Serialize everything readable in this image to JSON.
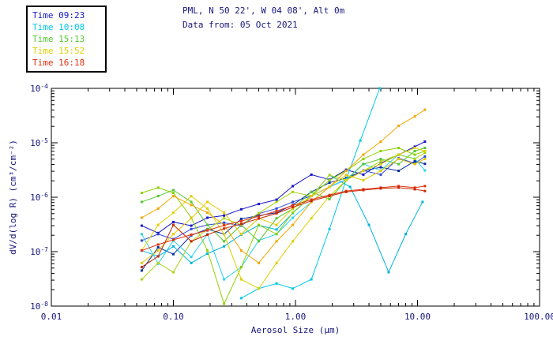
{
  "header": {
    "title": "PML, N 50 22', W 04 08', Alt 0m",
    "subtitle": "Data from: 05 Oct 2021"
  },
  "colors": {
    "background": "#ffffff",
    "frame": "#000000",
    "text": "#15157d"
  },
  "chart_data": {
    "type": "line",
    "title": "PML, N 50 22', W 04 08', Alt 0m",
    "subtitle": "Data from: 05 Oct 2021",
    "xlabel": "Aerosol Size (μm)",
    "ylabel": "dV/d(log R) (cm³/cm⁻²)",
    "xscale": "log",
    "yscale": "log",
    "grid": false,
    "xlim": [
      0.01,
      100
    ],
    "ylim": [
      1e-08,
      0.0001
    ],
    "xticks": [
      0.01,
      0.1,
      1.0,
      10.0,
      100.0
    ],
    "xtick_labels": [
      "0.01",
      "0.10",
      "1.00",
      "10.00",
      "100.00"
    ],
    "ytick_exponents": [
      -8,
      -7,
      -6,
      -5,
      -4
    ],
    "legend_position": "top-left",
    "legend": [
      {
        "label": "Time 09:23",
        "color": "#1616c8"
      },
      {
        "label": "Time 10:08",
        "color": "#00c8e6"
      },
      {
        "label": "Time 15:13",
        "color": "#55c832"
      },
      {
        "label": "Time 15:52",
        "color": "#e0d000"
      },
      {
        "label": "Time 16:18",
        "color": "#e03010"
      }
    ],
    "x_default": [
      0.055,
      0.075,
      0.1,
      0.14,
      0.19,
      0.26,
      0.36,
      0.5,
      0.7,
      0.95,
      1.35,
      1.9,
      2.6,
      3.6,
      5.0,
      7.0,
      9.5,
      11.5
    ],
    "series": [
      {
        "name": "09:23 run1",
        "color": "#1616c8",
        "y": [
          3e-07,
          2.2e-07,
          3.5e-07,
          3e-07,
          4.2e-07,
          4.6e-07,
          6e-07,
          7.5e-07,
          9e-07,
          1.6e-06,
          2.6e-06,
          2.1e-06,
          3.2e-06,
          2.6e-06,
          4.2e-06,
          6e-06,
          8.5e-06,
          1.05e-05
        ]
      },
      {
        "name": "09:23 run2",
        "color": "#2e49d8",
        "y": [
          1.6e-07,
          2.1e-07,
          1.7e-07,
          2.6e-07,
          3.1e-07,
          3.4e-07,
          3e-07,
          5e-07,
          6.2e-07,
          8.2e-07,
          1.05e-06,
          1.55e-06,
          2.1e-06,
          3.1e-06,
          2.6e-06,
          5.2e-06,
          4.2e-06,
          5.6e-06
        ]
      },
      {
        "name": "09:23 run3",
        "color": "#0b2fa0",
        "y": [
          4.5e-08,
          1.2e-07,
          9e-08,
          2e-07,
          2.6e-07,
          2.1e-07,
          4e-07,
          4.6e-07,
          5.2e-07,
          7.2e-07,
          1.25e-06,
          1.85e-06,
          2.25e-06,
          3.05e-06,
          3.55e-06,
          3.05e-06,
          4.6e-06,
          4.1e-06
        ]
      },
      {
        "name": "10:08 run1",
        "color": "#00c8e6",
        "x": [
          0.36,
          0.5,
          0.7,
          0.95,
          1.35,
          1.9,
          2.6,
          3.4,
          4.9
        ],
        "y": [
          1.4e-08,
          2.1e-08,
          2.6e-08,
          2.1e-08,
          3.1e-08,
          2.6e-07,
          2.1e-06,
          1.1e-05,
          0.0001
        ]
      },
      {
        "name": "10:08 run2",
        "color": "#2ad2f0",
        "y": [
          2.1e-07,
          6e-08,
          1.6e-07,
          8e-08,
          2.1e-07,
          3.1e-08,
          5.2e-08,
          1.6e-07,
          2.1e-07,
          4.2e-07,
          8.2e-07,
          1.55e-06,
          2.1e-06,
          4.1e-06,
          3.1e-06,
          6.1e-06,
          5.1e-06,
          3.1e-06
        ]
      },
      {
        "name": "10:08 run3",
        "color": "#00b4dc",
        "x": [
          0.055,
          0.075,
          0.1,
          0.14,
          0.19,
          0.26,
          0.36,
          0.5,
          0.7,
          0.95,
          1.35,
          1.9,
          2.8,
          4.0,
          5.8,
          8.0,
          11.0
        ],
        "y": [
          1.05e-07,
          8.2e-08,
          1.25e-07,
          6.2e-08,
          9.2e-08,
          1.25e-07,
          2.05e-07,
          3.05e-07,
          2.55e-07,
          5.1e-07,
          1.05e-06,
          2.55e-06,
          1.55e-06,
          3.1e-07,
          4.2e-08,
          2.1e-07,
          8.2e-07
        ]
      },
      {
        "name": "15:13 run1",
        "color": "#8cd200",
        "y": [
          1.2e-06,
          1.5e-06,
          1.2e-06,
          4.2e-07,
          1.05e-07,
          1.1e-08,
          5.2e-08,
          3.1e-07,
          2.1e-07,
          5.2e-07,
          1.05e-06,
          2.05e-06,
          3.05e-06,
          5.05e-06,
          7.05e-06,
          8.05e-06,
          6.05e-06,
          7.05e-06
        ]
      },
      {
        "name": "15:13 run2",
        "color": "#55c832",
        "y": [
          8.2e-07,
          1.05e-06,
          1.35e-06,
          8.2e-07,
          3.1e-07,
          1.55e-07,
          3.1e-07,
          1.55e-07,
          4.1e-07,
          6.1e-07,
          1.25e-06,
          9.2e-07,
          2.05e-06,
          4.05e-06,
          5.05e-06,
          4.05e-06,
          7.05e-06,
          8.05e-06
        ]
      },
      {
        "name": "15:13 run3",
        "color": "#a8d414",
        "y": [
          3.1e-08,
          6.2e-08,
          4.2e-08,
          1.55e-07,
          2.55e-07,
          4.1e-07,
          3.1e-07,
          5.1e-07,
          8.2e-07,
          1.25e-06,
          1.05e-06,
          2.55e-06,
          2.05e-06,
          3.05e-06,
          4.55e-06,
          6.05e-06,
          5.05e-06,
          6.55e-06
        ]
      },
      {
        "name": "15:52 run1",
        "color": "#f0a800",
        "y": [
          4.2e-07,
          6.2e-07,
          1.05e-06,
          7.2e-07,
          5.2e-07,
          3.1e-07,
          1.05e-07,
          6.2e-08,
          1.55e-07,
          3.1e-07,
          8.2e-07,
          1.55e-06,
          3.05e-06,
          6.05e-06,
          1.05e-05,
          2.05e-05,
          3.05e-05,
          4.05e-05
        ]
      },
      {
        "name": "15:52 run2",
        "color": "#e0d000",
        "y": [
          1.05e-07,
          3.1e-07,
          5.2e-07,
          1.05e-06,
          6.2e-07,
          2.1e-07,
          3.1e-08,
          2.1e-08,
          6.2e-08,
          1.55e-07,
          4.1e-07,
          1.05e-06,
          2.05e-06,
          3.05e-06,
          4.05e-06,
          6.05e-06,
          8.05e-06,
          7.05e-06
        ]
      },
      {
        "name": "15:52 run3",
        "color": "#e6c800",
        "y": [
          6.2e-08,
          1.05e-07,
          2.1e-07,
          4.1e-07,
          8.2e-07,
          5.2e-07,
          2.1e-07,
          4.1e-07,
          3.1e-07,
          6.2e-07,
          1.05e-06,
          1.55e-06,
          2.55e-06,
          2.05e-06,
          3.05e-06,
          5.05e-06,
          4.05e-06,
          5.05e-06
        ]
      },
      {
        "name": "16:18 run1",
        "color": "#e03010",
        "y": [
          1.05e-07,
          1.35e-07,
          1.65e-07,
          2.05e-07,
          2.45e-07,
          3.05e-07,
          3.65e-07,
          4.45e-07,
          5.55e-07,
          7.05e-07,
          9.05e-07,
          1.1e-06,
          1.3e-06,
          1.4e-06,
          1.5e-06,
          1.6e-06,
          1.5e-06,
          1.6e-06
        ]
      },
      {
        "name": "16:18 run2",
        "color": "#c82800",
        "y": [
          5.2e-08,
          8.2e-08,
          3.1e-07,
          1.55e-07,
          2.05e-07,
          2.65e-07,
          3.25e-07,
          4.05e-07,
          5.05e-07,
          6.55e-07,
          8.55e-07,
          1.05e-06,
          1.25e-06,
          1.35e-06,
          1.45e-06,
          1.5e-06,
          1.4e-06,
          1.3e-06
        ]
      }
    ]
  }
}
